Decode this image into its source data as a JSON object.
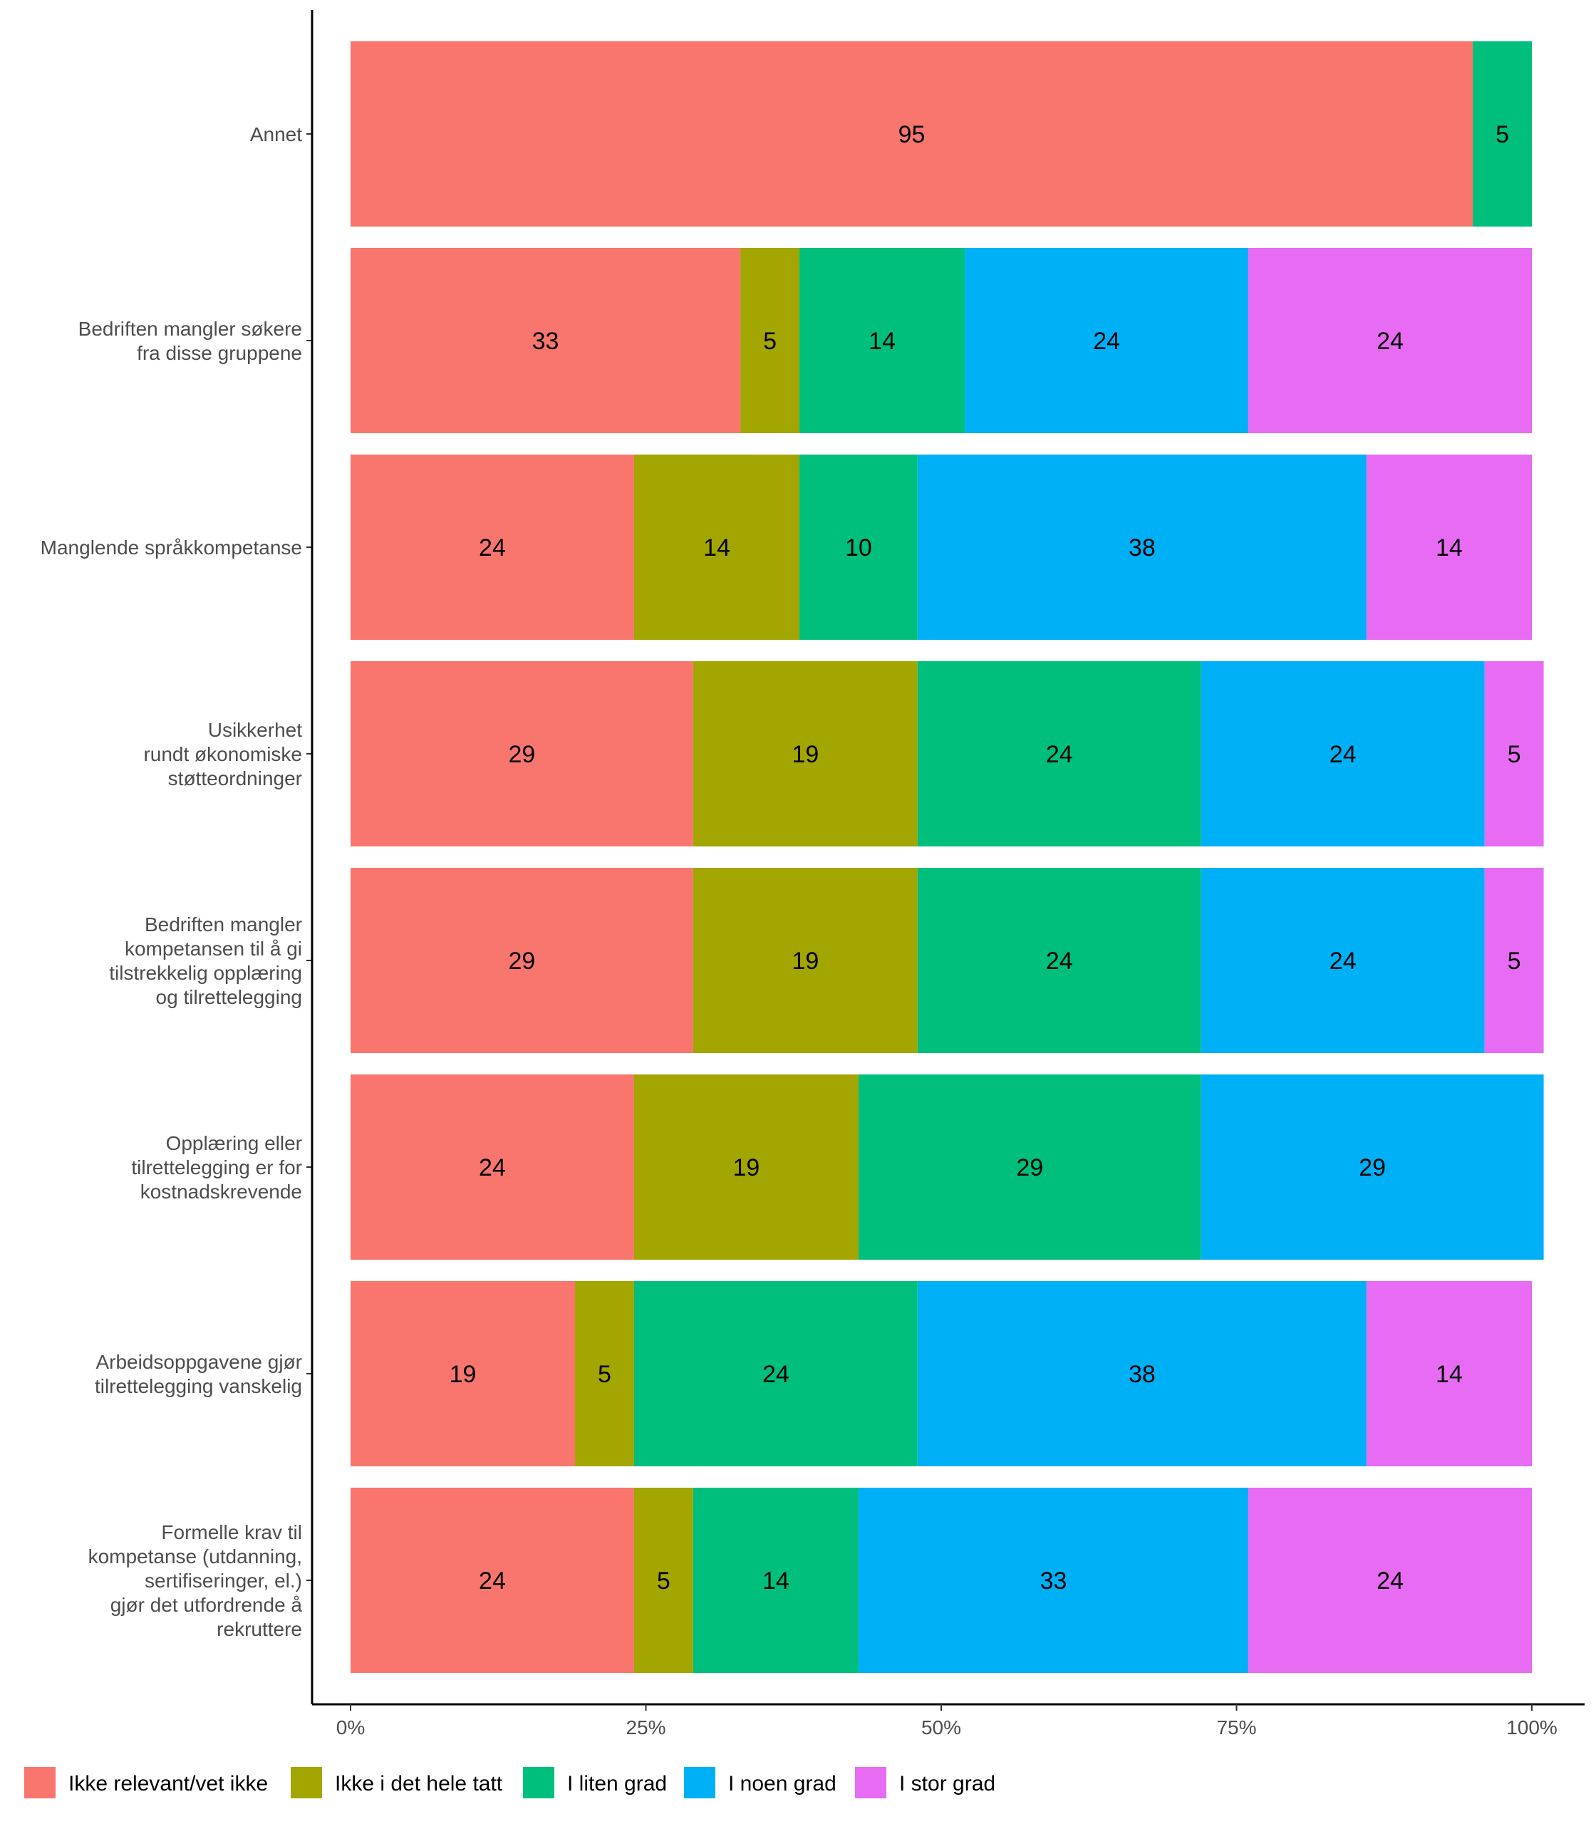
{
  "chart_data": {
    "type": "bar",
    "orientation": "horizontal",
    "stacked": true,
    "normalized": true,
    "title": "",
    "xlabel": "",
    "ylabel": "",
    "xlim": [
      0,
      100
    ],
    "x_ticks": [
      "0%",
      "25%",
      "50%",
      "75%",
      "100%"
    ],
    "grid": false,
    "legend_position": "bottom",
    "categories": [
      "Annet",
      "Bedriften mangler søkere\nfra disse gruppene",
      "Manglende språkkompetanse",
      "Usikkerhet\nrundt økonomiske\nstøtteordninger",
      "Bedriften mangler\nkompetansen til å gi\ntilstrekkelig opplæring\nog tilrettelegging",
      "Opplæring eller\ntilrettelegging er for\nkostnadskrevende",
      "Arbeidsoppgavene gjør\ntilrettelegging vanskelig",
      "Formelle krav til\nkompetanse (utdanning,\nsertifiseringer, el.)\ngjør det utfordrende å\nrekruttere"
    ],
    "series": [
      {
        "name": "Ikke relevant/vet ikke",
        "color": "#F8766D",
        "values": [
          95,
          33,
          24,
          29,
          29,
          24,
          19,
          24
        ]
      },
      {
        "name": "Ikke i det hele tatt",
        "color": "#A3A500",
        "values": [
          0,
          5,
          14,
          19,
          19,
          19,
          5,
          5
        ]
      },
      {
        "name": "I liten grad",
        "color": "#00BF7D",
        "values": [
          5,
          14,
          10,
          24,
          24,
          29,
          24,
          14
        ]
      },
      {
        "name": "I noen grad",
        "color": "#00B0F6",
        "values": [
          0,
          24,
          38,
          24,
          24,
          29,
          38,
          33
        ]
      },
      {
        "name": "I stor grad",
        "color": "#E76BF3",
        "values": [
          0,
          24,
          14,
          5,
          5,
          0,
          14,
          24
        ]
      }
    ]
  }
}
